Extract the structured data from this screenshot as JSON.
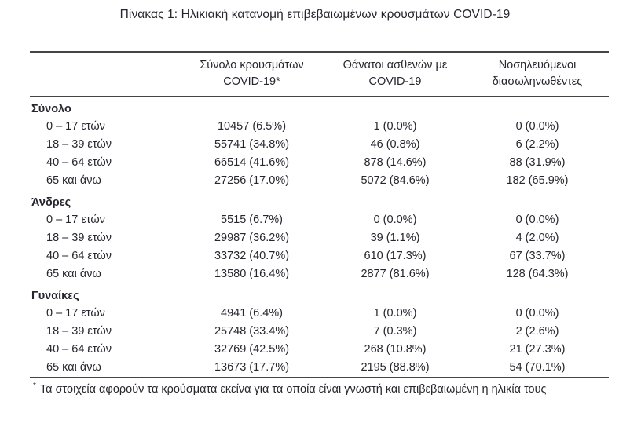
{
  "title": "Πίνακας 1: Ηλικιακή κατανομή επιβεβαιωμένων κρουσμάτων COVID-19",
  "header": {
    "cases": {
      "line1": "Σύνολο κρουσμάτων",
      "line2": "COVID-19*"
    },
    "deaths": {
      "line1": "Θάνατοι ασθενών με",
      "line2": "COVID-19"
    },
    "intubated": {
      "line1": "Νοσηλευόμενοι",
      "line2": "διασωληνωθέντες"
    }
  },
  "sections": [
    {
      "label": "Σύνολο",
      "rows": [
        {
          "age": "0 – 17 ετών",
          "cases": "10457 (6.5%)",
          "deaths": "1 (0.0%)",
          "intubated": "0 (0.0%)"
        },
        {
          "age": "18 – 39 ετών",
          "cases": "55741 (34.8%)",
          "deaths": "46 (0.8%)",
          "intubated": "6 (2.2%)"
        },
        {
          "age": "40 – 64 ετών",
          "cases": "66514 (41.6%)",
          "deaths": "878 (14.6%)",
          "intubated": "88 (31.9%)"
        },
        {
          "age": "65 και άνω",
          "cases": "27256 (17.0%)",
          "deaths": "5072 (84.6%)",
          "intubated": "182 (65.9%)"
        }
      ]
    },
    {
      "label": "Άνδρες",
      "rows": [
        {
          "age": "0 – 17 ετών",
          "cases": "5515 (6.7%)",
          "deaths": "0 (0.0%)",
          "intubated": "0 (0.0%)"
        },
        {
          "age": "18 – 39 ετών",
          "cases": "29987 (36.2%)",
          "deaths": "39 (1.1%)",
          "intubated": "4 (2.0%)"
        },
        {
          "age": "40 – 64 ετών",
          "cases": "33732 (40.7%)",
          "deaths": "610 (17.3%)",
          "intubated": "67 (33.7%)"
        },
        {
          "age": "65 και άνω",
          "cases": "13580 (16.4%)",
          "deaths": "2877 (81.6%)",
          "intubated": "128 (64.3%)"
        }
      ]
    },
    {
      "label": "Γυναίκες",
      "rows": [
        {
          "age": "0 – 17 ετών",
          "cases": "4941 (6.4%)",
          "deaths": "1 (0.0%)",
          "intubated": "0 (0.0%)"
        },
        {
          "age": "18 – 39 ετών",
          "cases": "25748 (33.4%)",
          "deaths": "7 (0.3%)",
          "intubated": "2 (2.6%)"
        },
        {
          "age": "40 – 64 ετών",
          "cases": "32769 (42.5%)",
          "deaths": "268 (10.8%)",
          "intubated": "21 (27.3%)"
        },
        {
          "age": "65 και άνω",
          "cases": "13673 (17.7%)",
          "deaths": "2195 (88.8%)",
          "intubated": "54 (70.1%)"
        }
      ]
    }
  ],
  "footnote": {
    "marker": "*",
    "text": "Τα στοιχεία αφορούν τα κρούσματα εκείνα για τα οποία είναι γνωστή και επιβεβαιωμένη η ηλικία τους"
  },
  "colors": {
    "text": "#26262e",
    "rule": "#454545",
    "background": "#ffffff"
  }
}
